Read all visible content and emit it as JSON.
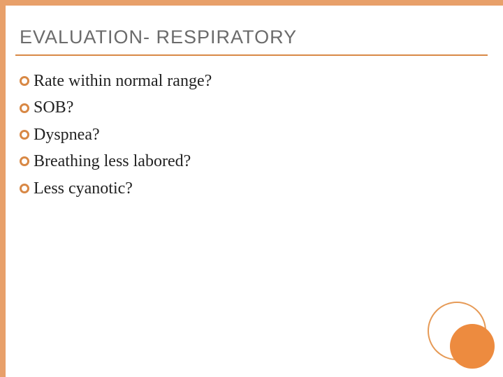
{
  "slide": {
    "title": "EVALUATION- RESPIRATORY",
    "title_color": "#6b6b6b",
    "title_fontsize": 27,
    "underline_color": "#d88845",
    "bullets": [
      {
        "text": "Rate within normal range?"
      },
      {
        "text": "SOB?"
      },
      {
        "text": "Dyspnea?"
      },
      {
        "text": "Breathing less labored?"
      },
      {
        "text": "Less cyanotic?"
      }
    ],
    "bullet_marker_color": "#d88845",
    "bullet_text_color": "#222222",
    "bullet_fontsize": 24,
    "border_color": "#e8a06a",
    "background_color": "#ffffff",
    "decoration": {
      "outer_ring_color": "#e69a56",
      "inner_fill_color": "#ed8b3f"
    }
  }
}
